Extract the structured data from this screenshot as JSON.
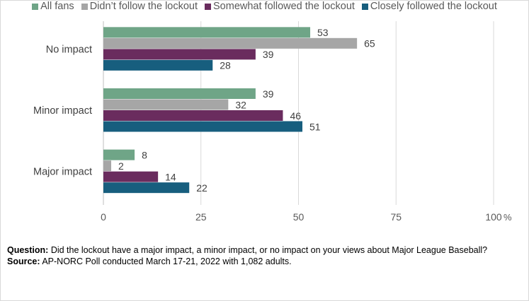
{
  "chart_data": {
    "type": "bar",
    "orientation": "horizontal",
    "categories": [
      "No impact",
      "Minor impact",
      "Major impact"
    ],
    "series": [
      {
        "name": "All fans",
        "color": "#6fa587",
        "values": [
          53,
          39,
          8
        ]
      },
      {
        "name": "Didn’t follow the lockout",
        "color": "#a6a6a6",
        "values": [
          65,
          32,
          2
        ]
      },
      {
        "name": "Somewhat followed the lockout",
        "color": "#6a2c5e",
        "values": [
          39,
          46,
          14
        ]
      },
      {
        "name": "Closely followed the lockout",
        "color": "#175e7e",
        "values": [
          28,
          51,
          22
        ]
      }
    ],
    "xlim": [
      0,
      100
    ],
    "xticks": [
      "0",
      "25",
      "50",
      "75",
      "100"
    ],
    "x_unit": "%",
    "grid": true,
    "legend_position": "top"
  },
  "notes": {
    "question_label": "Question:",
    "question_text": "Did the lockout have a major impact, a minor impact, or no impact on your views about Major League Baseball?",
    "source_label": "Source:",
    "source_text": "AP-NORC Poll conducted March 17-21, 2022 with 1,082 adults."
  }
}
